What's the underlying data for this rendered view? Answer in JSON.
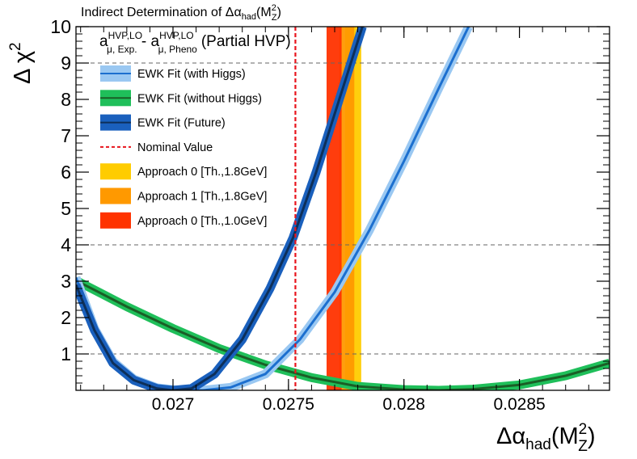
{
  "chart_data": {
    "type": "line",
    "title_prefix": "Indirect Determination of Δα",
    "title_sub": "had",
    "title_suffix_open": "(M",
    "title_sup": "2",
    "title_sub2": "Z",
    "title_close": ")",
    "subtitle": {
      "a1": "a",
      "a1_sup": "HVP,LO",
      "a1_sub": "μ, Exp.",
      "minus": " - ",
      "a2": "a",
      "a2_sup": "HVP,LO",
      "a2_sub": "μ, Pheno",
      "tail": "(Partial HVP)"
    },
    "xlabel": {
      "main": "Δα",
      "sub": "had",
      "paren_open": "(M",
      "sup": "2",
      "sub2": "Z",
      "paren_close": ")"
    },
    "ylabel": {
      "main": "Δ χ",
      "sup": "2"
    },
    "xlim": [
      0.02658,
      0.02889
    ],
    "ylim": [
      0,
      10
    ],
    "x_ticks": [
      {
        "value": 0.027,
        "label": "0.027"
      },
      {
        "value": 0.0275,
        "label": "0.0275"
      },
      {
        "value": 0.028,
        "label": "0.028"
      },
      {
        "value": 0.0285,
        "label": "0.0285"
      }
    ],
    "y_ticks": [
      {
        "value": 1,
        "label": "1"
      },
      {
        "value": 2,
        "label": "2"
      },
      {
        "value": 3,
        "label": "3"
      },
      {
        "value": 4,
        "label": "4"
      },
      {
        "value": 5,
        "label": "5"
      },
      {
        "value": 6,
        "label": "6"
      },
      {
        "value": 7,
        "label": "7"
      },
      {
        "value": 8,
        "label": "8"
      },
      {
        "value": 9,
        "label": "9"
      },
      {
        "value": 10,
        "label": "10"
      }
    ],
    "dashed_gridlines_y": [
      1,
      4,
      9
    ],
    "series": [
      {
        "name": "EWK Fit (with Higgs)",
        "band_color": "#9ac8f2",
        "line_color": "#1c6fcf",
        "x_min": 0.02713,
        "band_halfwidth": 4.5e-05,
        "points": [
          [
            0.02658,
            3.1
          ],
          [
            0.02666,
            1.7
          ],
          [
            0.02674,
            0.8
          ],
          [
            0.02683,
            0.31
          ],
          [
            0.02693,
            0.07
          ],
          [
            0.02702,
            0.0
          ],
          [
            0.02713,
            0.0
          ],
          [
            0.02725,
            0.08
          ],
          [
            0.0274,
            0.45
          ],
          [
            0.02755,
            1.4
          ],
          [
            0.0277,
            2.7
          ],
          [
            0.02785,
            4.4
          ],
          [
            0.028,
            6.3
          ],
          [
            0.02815,
            8.3
          ],
          [
            0.02828,
            10.0
          ]
        ]
      },
      {
        "name": "EWK Fit (without Higgs)",
        "band_color": "#1fbf5a",
        "line_color": "#1a5e26",
        "points": [
          [
            0.02658,
            3.02
          ],
          [
            0.0268,
            2.3
          ],
          [
            0.027,
            1.7
          ],
          [
            0.0272,
            1.15
          ],
          [
            0.0274,
            0.7
          ],
          [
            0.0276,
            0.35
          ],
          [
            0.0278,
            0.11
          ],
          [
            0.028,
            0.02
          ],
          [
            0.02815,
            0.0
          ],
          [
            0.0283,
            0.03
          ],
          [
            0.0285,
            0.15
          ],
          [
            0.0287,
            0.4
          ],
          [
            0.02889,
            0.75
          ]
        ]
      },
      {
        "name": "EWK Fit (Future)",
        "band_color": "#1a60bd",
        "line_color": "#0d2f59",
        "points": [
          [
            0.02658,
            2.9
          ],
          [
            0.02666,
            1.65
          ],
          [
            0.02674,
            0.75
          ],
          [
            0.02683,
            0.28
          ],
          [
            0.02693,
            0.05
          ],
          [
            0.027,
            0.0
          ],
          [
            0.02708,
            0.05
          ],
          [
            0.02718,
            0.45
          ],
          [
            0.0273,
            1.4
          ],
          [
            0.02742,
            2.8
          ],
          [
            0.02752,
            4.2
          ],
          [
            0.02762,
            6.0
          ],
          [
            0.02772,
            8.0
          ],
          [
            0.02782,
            10.0
          ]
        ]
      }
    ],
    "nominal_value": {
      "name": "Nominal Value",
      "x": 0.02753,
      "color": "#e8141c"
    },
    "vertical_bands": [
      {
        "name": "Approach 0 [Th.,1.8GeV]",
        "x_range": [
          0.027745,
          0.027815
        ],
        "color": "#ffcc00"
      },
      {
        "name": "Approach 1 [Th.,1.8GeV]",
        "x_range": [
          0.02772,
          0.027785
        ],
        "color": "#ff9900"
      },
      {
        "name": "Approach 0 [Th.,1.0GeV]",
        "x_range": [
          0.027665,
          0.02773
        ],
        "color": "#ff3300"
      }
    ],
    "legend": {
      "position": "top-left",
      "entries": [
        {
          "label": "EWK Fit (with Higgs)",
          "kind": "band",
          "fill": "#9ac8f2",
          "line": "#1c6fcf"
        },
        {
          "label": "EWK Fit (without Higgs)",
          "kind": "band",
          "fill": "#1fbf5a",
          "line": "#1a5e26"
        },
        {
          "label": "EWK Fit (Future)",
          "kind": "band",
          "fill": "#1a60bd",
          "line": "#0d2f59"
        },
        {
          "label": "Nominal Value",
          "kind": "dashed",
          "line": "#e8141c"
        },
        {
          "label": "Approach 0 [Th.,1.8GeV]",
          "kind": "box",
          "fill": "#ffcc00"
        },
        {
          "label": "Approach 1 [Th.,1.8GeV]",
          "kind": "box",
          "fill": "#ff9900"
        },
        {
          "label": "Approach 0 [Th.,1.0GeV]",
          "kind": "box",
          "fill": "#ff3300"
        }
      ]
    }
  }
}
